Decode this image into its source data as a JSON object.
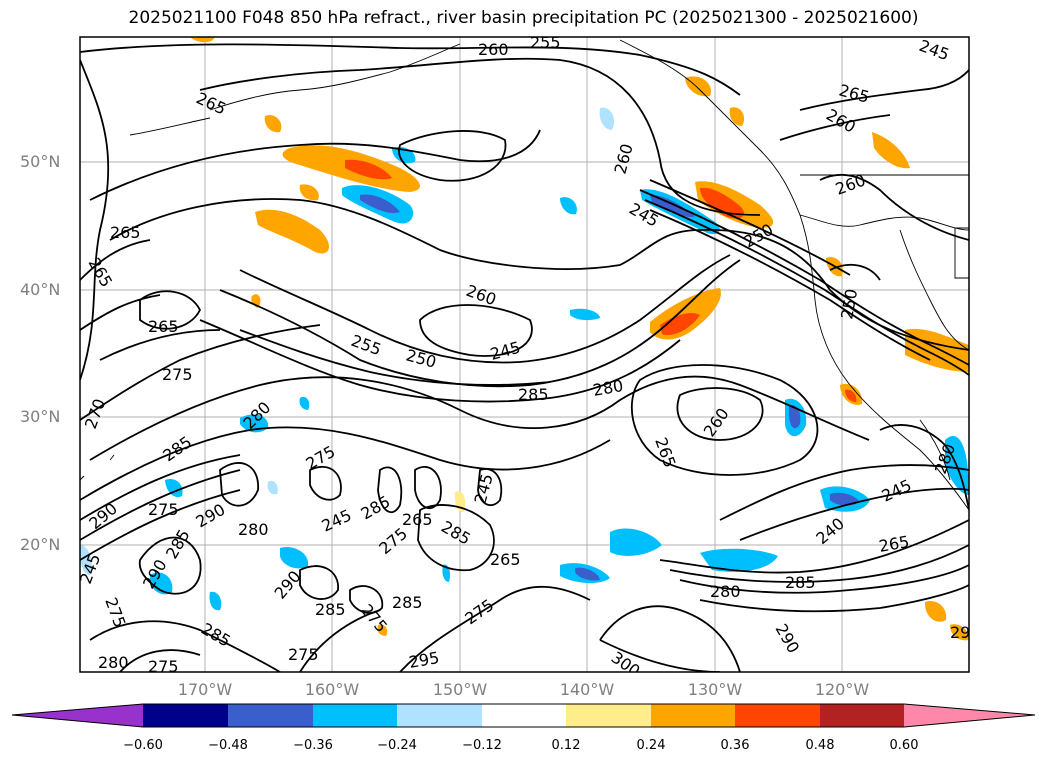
{
  "title": "2025021100 F048 850 hPa refract., river basin precipitation PC (2025021300 - 2025021600)",
  "map": {
    "lat_labels": [
      "50°N",
      "40°N",
      "30°N",
      "20°N"
    ],
    "lon_labels": [
      "170°W",
      "160°W",
      "150°W",
      "140°W",
      "130°W",
      "120°W"
    ],
    "contour_labels": [
      "255",
      "260",
      "265",
      "265",
      "265",
      "265",
      "270",
      "275",
      "280",
      "285",
      "290",
      "245",
      "250",
      "255",
      "260",
      "265",
      "270",
      "275",
      "280",
      "285",
      "290",
      "295",
      "300",
      "260",
      "265",
      "270",
      "245",
      "250",
      "240",
      "245",
      "255",
      "280",
      "285",
      "290",
      "270",
      "280",
      "285",
      "290",
      "285",
      "275",
      "265",
      "275",
      "280"
    ],
    "contour_color": "#000000",
    "grid_color": "#b0b0b0",
    "coast_color": "#000000"
  },
  "colorbar": {
    "colors": [
      "#9932cc",
      "#00008b",
      "#3a5fcd",
      "#00bfff",
      "#b0e2ff",
      "#ffffff",
      "#ffec8b",
      "#ffa500",
      "#ff4500",
      "#b22222",
      "#ff88aa"
    ],
    "ticks": [
      "−0.60",
      "−0.48",
      "−0.36",
      "−0.24",
      "−0.12",
      "0.12",
      "0.24",
      "0.36",
      "0.48",
      "0.60"
    ]
  }
}
